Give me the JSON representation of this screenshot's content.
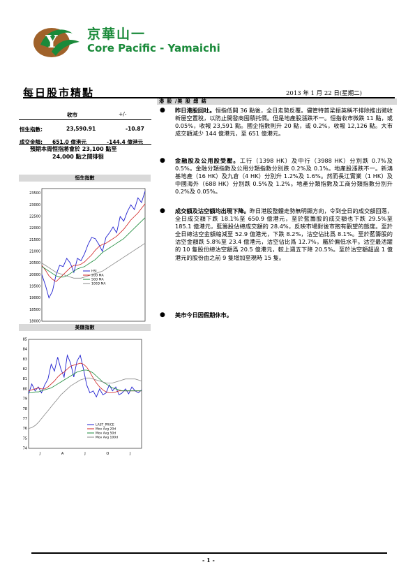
{
  "header": {
    "brand_cn": "京華山一",
    "brand_en": "Core Pacific - Yamaichi",
    "report_title": "每日股市精點",
    "date": "2013 年 1 月 22 日(星期二)"
  },
  "summary": {
    "col_close": "收市",
    "col_change": "+/-",
    "rows": [
      {
        "label": "恒生指數:",
        "value": "23,590.91",
        "change": "-10.87"
      },
      {
        "label": "成交金額:",
        "value": "651.0 億港元",
        "change": "-144.4 億港元"
      }
    ],
    "forecast_line1": "預期本周恒指將會於 23,100 點至",
    "forecast_line2": "24,000 點之間徘徊"
  },
  "section_right": "港 股 /美 股 總 結",
  "bullets": [
    {
      "lead": "昨日港股回吐。",
      "text": "恒指低開 36 點後，全日走勢反覆。儘管特首梁振英稱不排除推出徵收新屋空置稅，以防止開發商囤積托價。但是地產股漲跌不一。恒指收市微跌 11 點，或 0.05%，收報 23,591 點。國企指數則升 20 點，或 0.2%，收報 12,126 點。大市成交額減少 144 億港元，至 651 億港元。"
    },
    {
      "lead": "金融股及公用股受壓。",
      "text": "工行（1398 HK）及中行（3988 HK）分別跌 0.7%及 0.5%。金融分類指數及公用分類指數分別跌 0.2%及 0.1%。地產股漲跌不一。新鴻基地產（16 HK）及九倉（4 HK）分別升 1.2%及 1.6%。然而長江實業（1 HK）及中國海外（688 HK）分別跌 0.5%及 1.2%。地產分類指數及工商分類指數分別升 0.2%及 0.05%。"
    },
    {
      "lead": "成交額及沽空額均出現下降。",
      "text": "昨日港股整體走勢無明顯方向，令到全日的成交額回落，全日成交額下跌 18.1%至 650.9 億港元，至於藍籌股的成交額也下跌 29.5%至 185.1 億港元，藍籌股佔總成交額的 28.4%，反映市場對後市抱有觀望的態度。至於全日總沽空金額縮減至 52.9 億港元，下跌 8.2%，沽空佔比爲 8.1%。至於藍籌股的沽空金額跌 5.8%至 23.4 億港元，沽空佔比爲 12.7%，屬於偏低水平。沽空最活躍的 10 隻股份總沽空額爲 20.5 億港元，較上週五下降 20.5%。至於沽空額超過 1 億港元的股份由之前 9 隻增加至現時 15 隻。"
    },
    {
      "lead": "美市今日因假期休市。",
      "text": ""
    }
  ],
  "chart_data": [
    {
      "type": "line",
      "title": "恒生指數",
      "ylim": [
        18000,
        23700
      ],
      "yticks": [
        "23500",
        "23000",
        "22500",
        "22000",
        "21500",
        "21000",
        "20500",
        "20000",
        "19500",
        "19000",
        "18500",
        "18000"
      ],
      "xticks": [
        "J",
        "O",
        "J"
      ],
      "series": [
        {
          "name": "HSI",
          "color": "#1f1fd0",
          "values": [
            20000,
            19550,
            19000,
            19300,
            20000,
            20400,
            20350,
            20700,
            20500,
            20100,
            20700,
            20600,
            20900,
            21300,
            21600,
            21550,
            21300,
            21000,
            21600,
            21800,
            22050,
            21800,
            22500,
            22300,
            22700,
            23000,
            22800,
            23300,
            23100,
            23590
          ]
        },
        {
          "name": "20D MA",
          "color": "#d02020",
          "values": [
            20400,
            20200,
            19950,
            19800,
            19700,
            19850,
            20000,
            20150,
            20300,
            20400,
            20400,
            20450,
            20550,
            20700,
            20850,
            21050,
            21200,
            21300,
            21350,
            21450,
            21550,
            21650,
            21800,
            21950,
            22150,
            22350,
            22500,
            22650,
            22850,
            23050
          ]
        },
        {
          "name": "50D MA",
          "color": "#1a8a3a",
          "values": [
            20350,
            20250,
            20150,
            20050,
            19950,
            19900,
            19900,
            19950,
            20050,
            20150,
            20250,
            20300,
            20350,
            20450,
            20550,
            20650,
            20800,
            20950,
            21050,
            21150,
            21250,
            21350,
            21450,
            21550,
            21700,
            21850,
            22000,
            22150,
            22300,
            22450
          ]
        },
        {
          "name": "100D MA",
          "color": "#888888",
          "values": [
            20500,
            20400,
            20300,
            20200,
            20100,
            20050,
            20000,
            19950,
            19900,
            19850,
            19850,
            19850,
            19900,
            19950,
            20000,
            20050,
            20100,
            20150,
            20250,
            20350,
            20450,
            20550,
            20650,
            20750,
            20850,
            20950,
            21050,
            21150,
            21250,
            21350
          ]
        }
      ]
    },
    {
      "type": "line",
      "title": "美匯指數",
      "ylim": [
        74,
        85
      ],
      "yticks": [
        "85",
        "84",
        "83",
        "82",
        "81",
        "80",
        "79",
        "78",
        "77",
        "76",
        "75",
        "74"
      ],
      "xticks": [
        "J",
        "A",
        "J",
        "O",
        "J"
      ],
      "series": [
        {
          "name": "LAST_PRICE",
          "color": "#1f1fd0",
          "values": [
            79.5,
            80.5,
            79.8,
            80.2,
            79.6,
            80.4,
            81.0,
            82.5,
            81.8,
            83.2,
            82.0,
            81.2,
            83.4,
            82.6,
            81.2,
            82.8,
            83.4,
            82.0,
            80.4,
            79.6,
            79.8,
            79.2,
            80.0,
            79.4,
            79.6,
            80.4,
            79.8,
            80.2,
            79.4,
            79.6,
            80.0,
            79.5,
            80.2,
            79.8,
            79.6,
            79.9
          ]
        },
        {
          "name": "Mov Avg 20d",
          "color": "#d02020",
          "values": [
            79.8,
            79.9,
            80.0,
            80.1,
            80.0,
            80.0,
            80.2,
            80.5,
            80.8,
            81.2,
            81.5,
            81.7,
            82.0,
            82.3,
            82.4,
            82.5,
            82.6,
            82.5,
            82.2,
            81.7,
            81.1,
            80.6,
            80.2,
            79.9,
            79.7,
            79.6,
            79.6,
            79.7,
            79.8,
            79.8,
            79.8,
            79.8,
            79.8,
            79.8,
            79.8,
            79.8
          ]
        },
        {
          "name": "Mov Avg 50d",
          "color": "#1a8a3a",
          "values": [
            79.6,
            79.6,
            79.7,
            79.7,
            79.8,
            79.9,
            80.0,
            80.1,
            80.3,
            80.5,
            80.7,
            80.9,
            81.1,
            81.3,
            81.5,
            81.7,
            81.8,
            81.9,
            81.9,
            81.8,
            81.6,
            81.3,
            81.0,
            80.7,
            80.5,
            80.3,
            80.1,
            80.0,
            79.9,
            79.8,
            79.8,
            79.8,
            79.8,
            79.8,
            79.8,
            79.8
          ]
        },
        {
          "name": "Mov Avg 100d",
          "color": "#888888",
          "values": [
            76.0,
            76.1,
            76.3,
            76.6,
            77.0,
            77.4,
            77.8,
            78.2,
            78.6,
            79.0,
            79.4,
            79.7,
            80.0,
            80.3,
            80.5,
            80.7,
            80.9,
            81.0,
            81.1,
            81.1,
            81.0,
            80.9,
            80.8,
            80.7,
            80.6,
            80.6,
            80.6,
            80.7,
            80.8,
            80.9,
            81.0,
            81.0,
            81.0,
            81.0,
            80.9,
            80.8
          ]
        }
      ]
    }
  ],
  "footer": {
    "page": "- 1 -"
  },
  "colors": {
    "brand_green": "#1a8a3a",
    "logo_brown": "#a0622a"
  }
}
